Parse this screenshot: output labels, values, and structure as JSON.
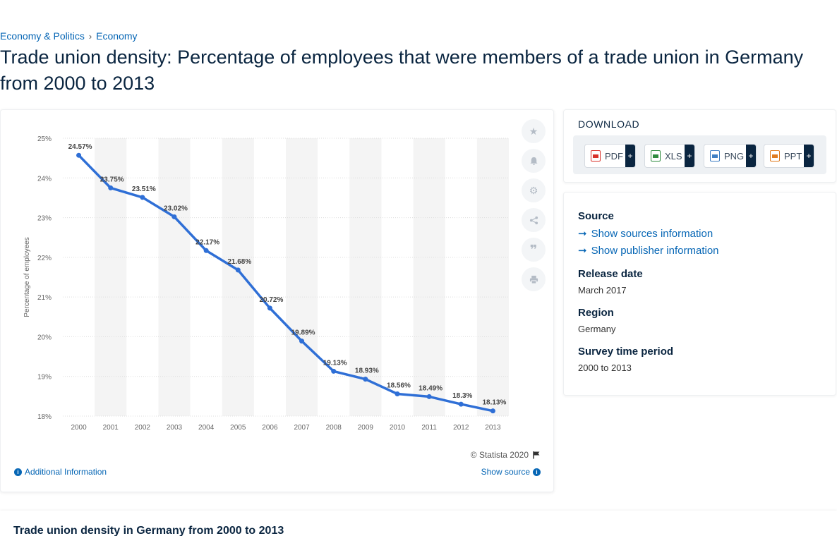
{
  "breadcrumb": {
    "item1": "Economy & Politics",
    "separator": "›",
    "item2": "Economy"
  },
  "title": "Trade union density: Percentage of employees that were members of a trade union in Germany from 2000 to 2013",
  "chart_data": {
    "type": "line",
    "title": "",
    "xlabel": "",
    "ylabel": "Percentage of employees",
    "categories": [
      "2000",
      "2001",
      "2002",
      "2003",
      "2004",
      "2005",
      "2006",
      "2007",
      "2008",
      "2009",
      "2010",
      "2011",
      "2012",
      "2013"
    ],
    "series": [
      {
        "values": [
          24.57,
          23.75,
          23.51,
          23.02,
          22.17,
          21.68,
          20.72,
          19.89,
          19.13,
          18.93,
          18.56,
          18.49,
          18.3,
          18.13
        ]
      }
    ],
    "data_labels": [
      "24.57%",
      "23.75%",
      "23.51%",
      "23.02%",
      "22.17%",
      "21.68%",
      "20.72%",
      "19.89%",
      "19.13%",
      "18.93%",
      "18.56%",
      "18.49%",
      "18.3%",
      "18.13%"
    ],
    "ylim": [
      18,
      25
    ],
    "yticks": [
      18,
      19,
      20,
      21,
      22,
      23,
      24,
      25
    ],
    "ytick_labels": [
      "18%",
      "19%",
      "20%",
      "21%",
      "22%",
      "23%",
      "24%",
      "25%"
    ],
    "grid": true,
    "line_color": "#2f6fd6",
    "band_color": "#f4f4f4"
  },
  "chart_footer": {
    "copyright": "© Statista 2020",
    "additional_info": "Additional Information",
    "show_source": "Show source"
  },
  "tools": [
    "star-icon",
    "bell-icon",
    "gear-icon",
    "share-icon",
    "quote-icon",
    "print-icon"
  ],
  "download": {
    "title": "DOWNLOAD",
    "buttons": [
      {
        "label": "PDF",
        "color": "#d9322b"
      },
      {
        "label": "XLS",
        "color": "#2e8b3e"
      },
      {
        "label": "PNG",
        "color": "#3f7fc4"
      },
      {
        "label": "PPT",
        "color": "#e07b1f"
      }
    ],
    "plus": "+"
  },
  "meta": {
    "source_label": "Source",
    "show_sources": "Show sources information",
    "show_publisher": "Show publisher information",
    "release_label": "Release date",
    "release_value": "March 2017",
    "region_label": "Region",
    "region_value": "Germany",
    "survey_label": "Survey time period",
    "survey_value": "2000 to 2013"
  },
  "bottom_title": "Trade union density in Germany from 2000 to 2013"
}
